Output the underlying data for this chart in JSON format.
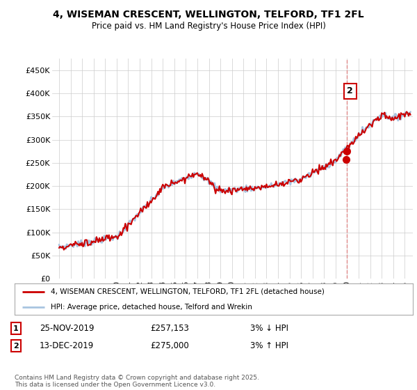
{
  "title": "4, WISEMAN CRESCENT, WELLINGTON, TELFORD, TF1 2FL",
  "subtitle": "Price paid vs. HM Land Registry's House Price Index (HPI)",
  "legend_line1": "4, WISEMAN CRESCENT, WELLINGTON, TELFORD, TF1 2FL (detached house)",
  "legend_line2": "HPI: Average price, detached house, Telford and Wrekin",
  "annotation1_date": "25-NOV-2019",
  "annotation1_price": "£257,153",
  "annotation1_hpi": "3% ↓ HPI",
  "annotation2_date": "13-DEC-2019",
  "annotation2_price": "£275,000",
  "annotation2_hpi": "3% ↑ HPI",
  "footer": "Contains HM Land Registry data © Crown copyright and database right 2025.\nThis data is licensed under the Open Government Licence v3.0.",
  "hpi_color": "#a8c4e0",
  "price_color": "#cc0000",
  "marker_color": "#cc0000",
  "vline_color": "#e08080",
  "background_color": "#ffffff",
  "ylim": [
    0,
    475000
  ],
  "yticks": [
    0,
    50000,
    100000,
    150000,
    200000,
    250000,
    300000,
    350000,
    400000,
    450000
  ],
  "ytick_labels": [
    "£0",
    "£50K",
    "£100K",
    "£150K",
    "£200K",
    "£250K",
    "£300K",
    "£350K",
    "£400K",
    "£450K"
  ],
  "sale1_year": 2019.9,
  "sale1_price": 257153,
  "sale2_year": 2019.96,
  "sale2_price": 275000
}
